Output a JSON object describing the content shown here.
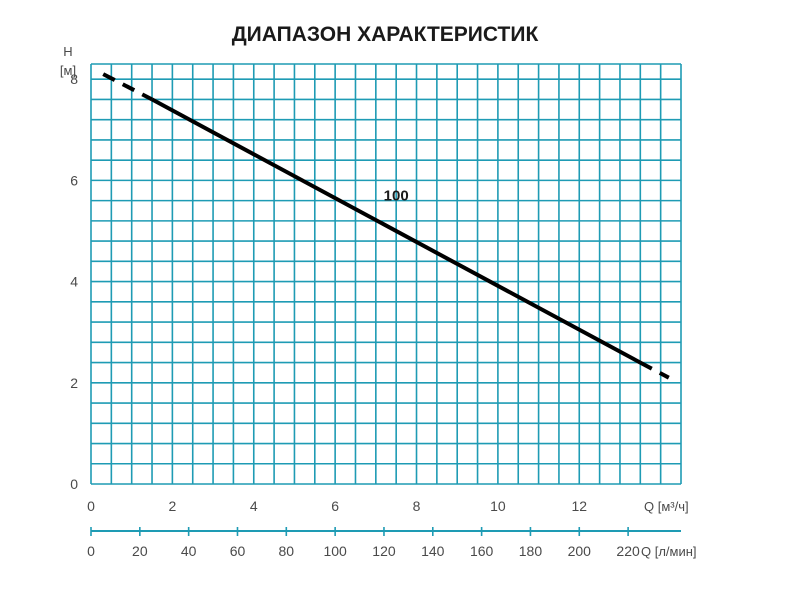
{
  "chart_data": {
    "type": "line",
    "title": "ДИАПАЗОН ХАРАКТЕРИСТИК",
    "y_axis": {
      "label_line1": "H",
      "label_line2": "[м]",
      "range": [
        0,
        8.3
      ],
      "ticks": [
        0,
        2,
        4,
        6,
        8
      ],
      "grid_step": 0.4
    },
    "x_axis_primary": {
      "label": "Q [м³/ч]",
      "range": [
        0,
        14.5
      ],
      "ticks": [
        0,
        2,
        4,
        6,
        8,
        10,
        12
      ],
      "grid_step": 0.5
    },
    "x_axis_secondary": {
      "label": "Q [л/мин]",
      "ticks": [
        0,
        20,
        40,
        60,
        80,
        100,
        120,
        140,
        160,
        180,
        200,
        220
      ]
    },
    "series": [
      {
        "name": "100",
        "color": "#000000",
        "points": [
          [
            0.3,
            8.1
          ],
          [
            1.5,
            7.6
          ],
          [
            8.0,
            4.9
          ],
          [
            12.0,
            3.05
          ],
          [
            14.2,
            2.1
          ]
        ],
        "dashed_segments": [
          [
            [
              0.3,
              8.1
            ],
            [
              1.5,
              7.6
            ]
          ],
          [
            [
              13.5,
              2.4
            ],
            [
              14.2,
              2.1
            ]
          ]
        ],
        "solid_segment": [
          [
            1.5,
            7.6
          ],
          [
            13.5,
            2.4
          ]
        ],
        "label_position": [
          7.5,
          5.7
        ]
      }
    ],
    "grid_color": "#1e9bb4",
    "grid": true
  }
}
